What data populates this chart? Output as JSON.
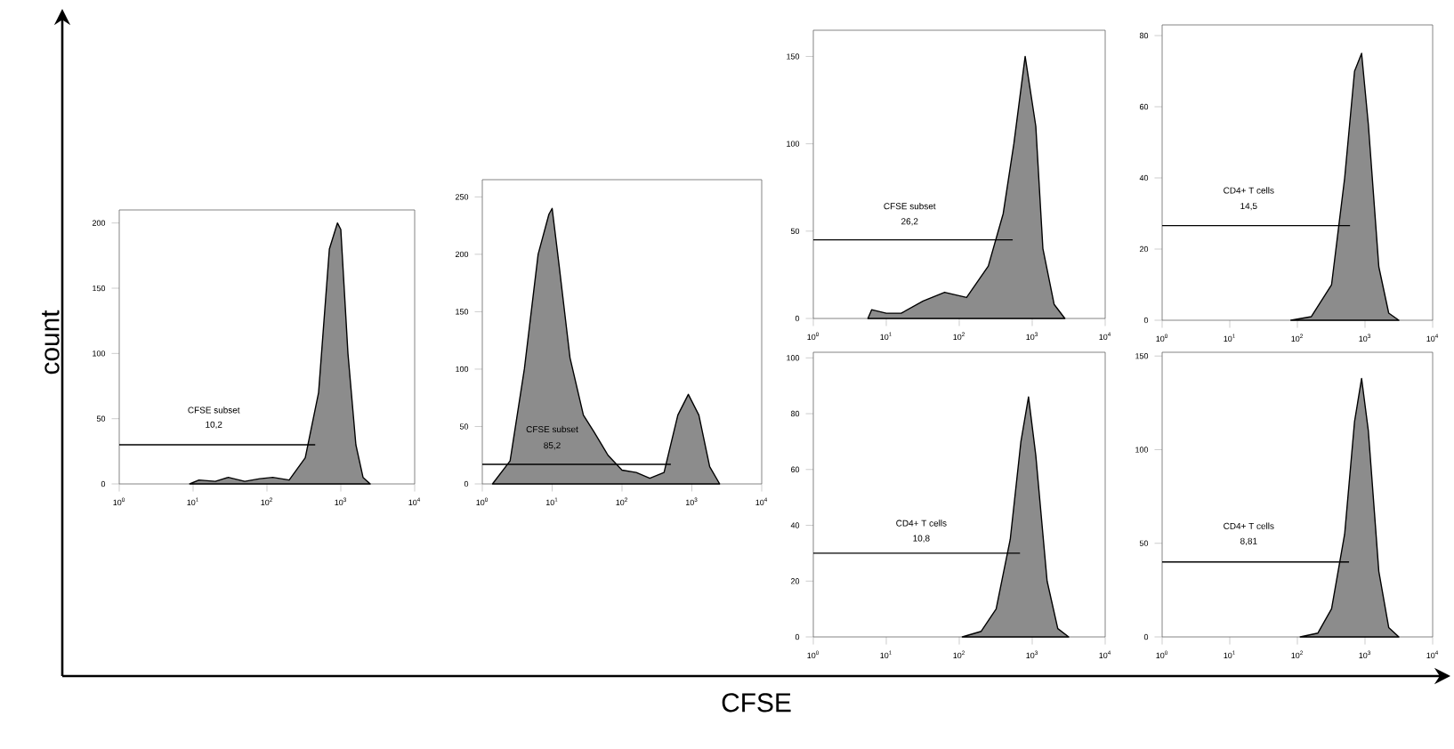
{
  "chart_data": [
    {
      "type": "other",
      "xlabel": "CFSE",
      "ylabel": "count"
    },
    {
      "type": "area",
      "log": "x",
      "xlim": [
        1,
        10000
      ],
      "xticks": [
        {
          "value": 1,
          "label": "10$^{0}$"
        },
        {
          "value": 10,
          "label": "10$^{1}$"
        },
        {
          "value": 100,
          "label": "10$^{2}$"
        },
        {
          "value": 1000,
          "label": "10$^{3}$"
        },
        {
          "value": 10000,
          "label": "10$^{4}$"
        }
      ],
      "ylim": [
        0,
        210
      ],
      "yticks": [
        0,
        50,
        100,
        150,
        200
      ],
      "series": [
        {
          "color": "#8c8c8c",
          "x": [
            9,
            12,
            20,
            30,
            50,
            80,
            120,
            200,
            330,
            500,
            700,
            900,
            1000,
            1250,
            1600,
            2000,
            2500
          ],
          "values": [
            0,
            3,
            2,
            5,
            2,
            4,
            5,
            3,
            20,
            70,
            180,
            200,
            195,
            100,
            30,
            5,
            0
          ]
        },
        {
          "type": "line",
          "color": "#000000",
          "x": [
            1,
            450
          ],
          "values": [
            30,
            30
          ]
        }
      ],
      "annotations": [
        "CFSE subset",
        "10,2"
      ]
    },
    {
      "type": "area",
      "log": "x",
      "xlim": [
        1,
        10000
      ],
      "xticks": [
        {
          "value": 1,
          "label": "10$^{0}$"
        },
        {
          "value": 10,
          "label": "10$^{1}$"
        },
        {
          "value": 100,
          "label": "10$^{2}$"
        },
        {
          "value": 1000,
          "label": "10$^{3}$"
        },
        {
          "value": 10000,
          "label": "10$^{4}$"
        }
      ],
      "ylim": [
        0,
        265
      ],
      "yticks": [
        0,
        50,
        100,
        150,
        200,
        250
      ],
      "series": [
        {
          "color": "#8c8c8c",
          "x": [
            1.4,
            2.5,
            4,
            6.3,
            9,
            10,
            12.6,
            18,
            28,
            40,
            63,
            100,
            160,
            250,
            400,
            630,
            890,
            1260,
            1800,
            2500
          ],
          "values": [
            0,
            20,
            100,
            200,
            235,
            240,
            190,
            110,
            60,
            45,
            25,
            12,
            10,
            5,
            10,
            60,
            78,
            60,
            15,
            0
          ]
        },
        {
          "type": "line",
          "color": "#000000",
          "x": [
            1,
            500
          ],
          "values": [
            17,
            17
          ]
        }
      ],
      "annotations": [
        "CFSE subset",
        "85,2"
      ]
    },
    {
      "type": "area",
      "log": "x",
      "xlim": [
        1,
        10000
      ],
      "xticks": [
        {
          "value": 1,
          "label": "10$^{0}$"
        },
        {
          "value": 10,
          "label": "10$^{1}$"
        },
        {
          "value": 100,
          "label": "10$^{2}$"
        },
        {
          "value": 1000,
          "label": "10$^{3}$"
        },
        {
          "value": 10000,
          "label": "10$^{4}$"
        }
      ],
      "ylim": [
        0,
        165
      ],
      "yticks": [
        0,
        50,
        100,
        150
      ],
      "series": [
        {
          "color": "#8c8c8c",
          "x": [
            5.6,
            6.3,
            10,
            16,
            32,
            63,
            126,
            250,
            400,
            560,
            800,
            1120,
            1400,
            2000,
            2800
          ],
          "values": [
            0,
            5,
            3,
            3,
            10,
            15,
            12,
            30,
            60,
            100,
            150,
            110,
            40,
            8,
            0
          ]
        },
        {
          "type": "line",
          "color": "#000000",
          "x": [
            1,
            540
          ],
          "values": [
            45,
            45
          ]
        }
      ],
      "annotations": [
        "CFSE subset",
        "26,2"
      ]
    },
    {
      "type": "area",
      "log": "x",
      "xlim": [
        1,
        10000
      ],
      "xticks": [
        {
          "value": 1,
          "label": "10$^{0}$"
        },
        {
          "value": 10,
          "label": "10$^{1}$"
        },
        {
          "value": 100,
          "label": "10$^{2}$"
        },
        {
          "value": 1000,
          "label": "10$^{3}$"
        },
        {
          "value": 10000,
          "label": "10$^{4}$"
        }
      ],
      "ylim": [
        0,
        83
      ],
      "yticks": [
        0,
        20,
        40,
        60,
        80
      ],
      "series": [
        {
          "color": "#8c8c8c",
          "x": [
            80,
            160,
            320,
            500,
            700,
            890,
            1120,
            1600,
            2240,
            3160
          ],
          "values": [
            0,
            1,
            10,
            40,
            70,
            75,
            55,
            15,
            2,
            0
          ]
        },
        {
          "type": "line",
          "color": "#000000",
          "x": [
            1,
            600
          ],
          "values": [
            26.6,
            26.6
          ]
        }
      ],
      "annotations": [
        "CD4+ T cells",
        "14,5"
      ]
    },
    {
      "type": "area",
      "log": "x",
      "xlim": [
        1,
        10000
      ],
      "xticks": [
        {
          "value": 1,
          "label": "10$^{0}$"
        },
        {
          "value": 10,
          "label": "10$^{1}$"
        },
        {
          "value": 100,
          "label": "10$^{2}$"
        },
        {
          "value": 1000,
          "label": "10$^{3}$"
        },
        {
          "value": 10000,
          "label": "10$^{4}$"
        }
      ],
      "ylim": [
        0,
        102
      ],
      "yticks": [
        0,
        20,
        40,
        60,
        80,
        100
      ],
      "series": [
        {
          "color": "#8c8c8c",
          "x": [
            110,
            200,
            320,
            500,
            700,
            890,
            1120,
            1600,
            2240,
            3160
          ],
          "values": [
            0,
            2,
            10,
            35,
            70,
            86,
            65,
            20,
            3,
            0
          ]
        },
        {
          "type": "line",
          "color": "#000000",
          "x": [
            1,
            680
          ],
          "values": [
            30,
            30
          ]
        }
      ],
      "annotations": [
        "CD4+ T cells",
        "10,8"
      ]
    },
    {
      "type": "area",
      "log": "x",
      "xlim": [
        1,
        10000
      ],
      "xticks": [
        {
          "value": 1,
          "label": "10$^{0}$"
        },
        {
          "value": 10,
          "label": "10$^{1}$"
        },
        {
          "value": 100,
          "label": "10$^{2}$"
        },
        {
          "value": 1000,
          "label": "10$^{3}$"
        },
        {
          "value": 10000,
          "label": "10$^{4}$"
        }
      ],
      "ylim": [
        0,
        152
      ],
      "yticks": [
        0,
        50,
        100,
        150
      ],
      "series": [
        {
          "color": "#8c8c8c",
          "x": [
            110,
            200,
            320,
            500,
            700,
            890,
            1120,
            1600,
            2240,
            3160
          ],
          "values": [
            0,
            2,
            15,
            55,
            115,
            138,
            110,
            35,
            5,
            0
          ]
        },
        {
          "type": "line",
          "color": "#000000",
          "x": [
            1,
            580
          ],
          "values": [
            40,
            40
          ]
        }
      ],
      "annotations": [
        "CD4+ T cells",
        "8,81"
      ]
    }
  ]
}
